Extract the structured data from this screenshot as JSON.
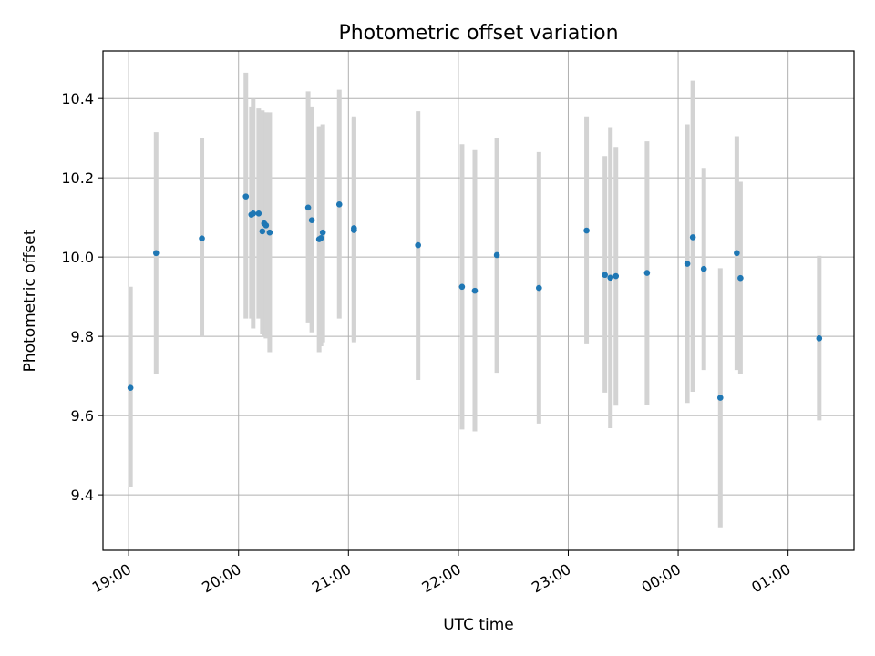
{
  "chart_data": {
    "type": "scatter",
    "title": "Photometric offset variation",
    "xlabel": "UTC time",
    "ylabel": "Photometric offset",
    "x_axis_kind": "time",
    "xlim": [
      "18:46",
      "01:36"
    ],
    "ylim": [
      9.26,
      10.52
    ],
    "x_ticks": [
      "19:00",
      "20:00",
      "21:00",
      "22:00",
      "23:00",
      "00:00",
      "01:00"
    ],
    "y_ticks": [
      "9.4",
      "9.6",
      "9.8",
      "10.0",
      "10.2",
      "10.4"
    ],
    "grid": true,
    "legend": "none",
    "colors": {
      "points": "#1f77b4",
      "errorbars": "#d3d3d3",
      "grid": "#b0b0b0"
    },
    "points": [
      {
        "time": "19:01",
        "y": 9.67,
        "ylo": 9.42,
        "yhi": 9.925
      },
      {
        "time": "19:15",
        "y": 10.01,
        "ylo": 9.705,
        "yhi": 10.315
      },
      {
        "time": "19:40",
        "y": 10.047,
        "ylo": 9.8,
        "yhi": 10.3
      },
      {
        "time": "20:04",
        "y": 10.153,
        "ylo": 9.845,
        "yhi": 10.465
      },
      {
        "time": "20:07",
        "y": 10.107,
        "ylo": 9.845,
        "yhi": 10.38
      },
      {
        "time": "20:08",
        "y": 10.11,
        "ylo": 9.82,
        "yhi": 10.4
      },
      {
        "time": "20:11",
        "y": 10.11,
        "ylo": 9.845,
        "yhi": 10.375
      },
      {
        "time": "20:13",
        "y": 10.065,
        "ylo": 9.805,
        "yhi": 10.37
      },
      {
        "time": "20:14",
        "y": 10.085,
        "ylo": 9.8,
        "yhi": 10.365
      },
      {
        "time": "20:15",
        "y": 10.08,
        "ylo": 9.795,
        "yhi": 10.365
      },
      {
        "time": "20:17",
        "y": 10.062,
        "ylo": 9.76,
        "yhi": 10.365
      },
      {
        "time": "20:38",
        "y": 10.125,
        "ylo": 9.835,
        "yhi": 10.418
      },
      {
        "time": "20:40",
        "y": 10.093,
        "ylo": 9.81,
        "yhi": 10.38
      },
      {
        "time": "20:44",
        "y": 10.045,
        "ylo": 9.76,
        "yhi": 10.33
      },
      {
        "time": "20:45",
        "y": 10.048,
        "ylo": 9.775,
        "yhi": 10.33
      },
      {
        "time": "20:46",
        "y": 10.062,
        "ylo": 9.785,
        "yhi": 10.335
      },
      {
        "time": "20:55",
        "y": 10.133,
        "ylo": 9.845,
        "yhi": 10.422
      },
      {
        "time": "21:03",
        "y": 10.073,
        "ylo": 9.79,
        "yhi": 10.355
      },
      {
        "time": "21:03",
        "y": 10.068,
        "ylo": 9.785,
        "yhi": 10.35
      },
      {
        "time": "21:38",
        "y": 10.03,
        "ylo": 9.69,
        "yhi": 10.368
      },
      {
        "time": "22:02",
        "y": 9.925,
        "ylo": 9.565,
        "yhi": 10.285
      },
      {
        "time": "22:09",
        "y": 9.915,
        "ylo": 9.56,
        "yhi": 10.27
      },
      {
        "time": "22:21",
        "y": 10.005,
        "ylo": 9.708,
        "yhi": 10.3
      },
      {
        "time": "22:44",
        "y": 9.922,
        "ylo": 9.58,
        "yhi": 10.265
      },
      {
        "time": "23:10",
        "y": 10.067,
        "ylo": 9.78,
        "yhi": 10.355
      },
      {
        "time": "23:20",
        "y": 9.955,
        "ylo": 9.658,
        "yhi": 10.255
      },
      {
        "time": "23:23",
        "y": 9.948,
        "ylo": 9.568,
        "yhi": 10.328
      },
      {
        "time": "23:26",
        "y": 9.952,
        "ylo": 9.625,
        "yhi": 10.278
      },
      {
        "time": "23:43",
        "y": 9.96,
        "ylo": 9.628,
        "yhi": 10.292
      },
      {
        "time": "00:05",
        "y": 9.983,
        "ylo": 9.632,
        "yhi": 10.335
      },
      {
        "time": "00:08",
        "y": 10.05,
        "ylo": 9.66,
        "yhi": 10.445
      },
      {
        "time": "00:14",
        "y": 9.97,
        "ylo": 9.715,
        "yhi": 10.225
      },
      {
        "time": "00:23",
        "y": 9.645,
        "ylo": 9.318,
        "yhi": 9.972
      },
      {
        "time": "00:32",
        "y": 10.01,
        "ylo": 9.715,
        "yhi": 10.305
      },
      {
        "time": "00:34",
        "y": 9.947,
        "ylo": 9.705,
        "yhi": 10.19
      },
      {
        "time": "01:17",
        "y": 9.795,
        "ylo": 9.588,
        "yhi": 10.003
      }
    ]
  }
}
